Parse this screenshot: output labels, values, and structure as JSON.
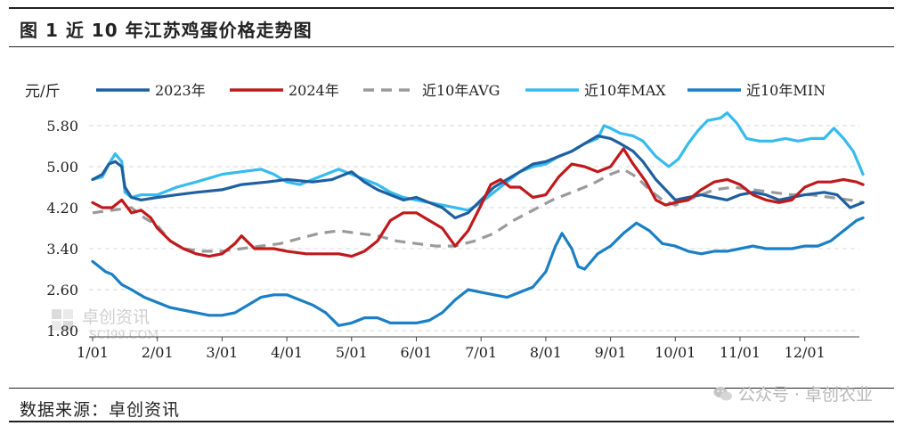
{
  "header": {
    "figure_title": "图 1  近 10 年江苏鸡蛋价格走势图"
  },
  "footer": {
    "source": "数据来源：卓创资讯",
    "wechat_label": "公众号 · 卓创农业"
  },
  "watermark": {
    "text": "卓创资讯",
    "sub": "SCI99.COM"
  },
  "colors": {
    "2023": "#1f5fa0",
    "2024": "#c0191c",
    "avg": "#9a9a9a",
    "max": "#36bbee",
    "min": "#1a7fc4"
  },
  "chart_data": {
    "type": "line",
    "ylabel": "元/斤",
    "ylim": [
      1.8,
      6.1
    ],
    "yticks": [
      "1.80",
      "2.60",
      "3.40",
      "4.20",
      "5.00",
      "5.80"
    ],
    "categories": [
      "1/01",
      "2/01",
      "3/01",
      "4/01",
      "5/01",
      "6/01",
      "7/01",
      "8/01",
      "9/01",
      "10/01",
      "11/01",
      "12/01"
    ],
    "x_unit": "month (1.0 = 1/01)",
    "grid": true,
    "legend": "top",
    "series": [
      {
        "name": "2023年",
        "key": "2023",
        "style": "solid",
        "points": [
          [
            1.0,
            4.75
          ],
          [
            1.15,
            4.85
          ],
          [
            1.25,
            5.05
          ],
          [
            1.35,
            5.1
          ],
          [
            1.45,
            5.0
          ],
          [
            1.5,
            4.6
          ],
          [
            1.6,
            4.4
          ],
          [
            1.75,
            4.35
          ],
          [
            2.0,
            4.4
          ],
          [
            2.3,
            4.45
          ],
          [
            2.6,
            4.5
          ],
          [
            3.0,
            4.55
          ],
          [
            3.3,
            4.65
          ],
          [
            3.7,
            4.7
          ],
          [
            4.0,
            4.75
          ],
          [
            4.4,
            4.7
          ],
          [
            4.7,
            4.75
          ],
          [
            5.0,
            4.9
          ],
          [
            5.2,
            4.7
          ],
          [
            5.4,
            4.55
          ],
          [
            5.6,
            4.45
          ],
          [
            5.8,
            4.35
          ],
          [
            6.0,
            4.4
          ],
          [
            6.2,
            4.3
          ],
          [
            6.4,
            4.2
          ],
          [
            6.6,
            4.0
          ],
          [
            6.8,
            4.1
          ],
          [
            7.0,
            4.35
          ],
          [
            7.2,
            4.6
          ],
          [
            7.4,
            4.75
          ],
          [
            7.6,
            4.9
          ],
          [
            7.8,
            5.05
          ],
          [
            8.0,
            5.1
          ],
          [
            8.2,
            5.2
          ],
          [
            8.4,
            5.3
          ],
          [
            8.6,
            5.45
          ],
          [
            8.8,
            5.6
          ],
          [
            9.0,
            5.55
          ],
          [
            9.15,
            5.45
          ],
          [
            9.35,
            5.3
          ],
          [
            9.5,
            5.1
          ],
          [
            9.7,
            4.75
          ],
          [
            9.85,
            4.55
          ],
          [
            10.0,
            4.35
          ],
          [
            10.2,
            4.4
          ],
          [
            10.4,
            4.45
          ],
          [
            10.6,
            4.4
          ],
          [
            10.8,
            4.35
          ],
          [
            11.0,
            4.45
          ],
          [
            11.2,
            4.5
          ],
          [
            11.4,
            4.45
          ],
          [
            11.6,
            4.35
          ],
          [
            11.8,
            4.4
          ],
          [
            12.0,
            4.45
          ],
          [
            12.3,
            4.5
          ],
          [
            12.5,
            4.45
          ],
          [
            12.7,
            4.2
          ],
          [
            12.9,
            4.3
          ]
        ]
      },
      {
        "name": "2024年",
        "key": "2024",
        "style": "solid",
        "points": [
          [
            1.0,
            4.3
          ],
          [
            1.15,
            4.2
          ],
          [
            1.3,
            4.2
          ],
          [
            1.45,
            4.35
          ],
          [
            1.6,
            4.1
          ],
          [
            1.75,
            4.15
          ],
          [
            1.9,
            4.0
          ],
          [
            2.0,
            3.8
          ],
          [
            2.2,
            3.55
          ],
          [
            2.4,
            3.4
          ],
          [
            2.6,
            3.3
          ],
          [
            2.8,
            3.25
          ],
          [
            3.0,
            3.3
          ],
          [
            3.2,
            3.5
          ],
          [
            3.3,
            3.65
          ],
          [
            3.5,
            3.4
          ],
          [
            3.8,
            3.4
          ],
          [
            4.0,
            3.35
          ],
          [
            4.3,
            3.3
          ],
          [
            4.6,
            3.3
          ],
          [
            4.8,
            3.3
          ],
          [
            5.0,
            3.25
          ],
          [
            5.2,
            3.35
          ],
          [
            5.4,
            3.55
          ],
          [
            5.6,
            3.95
          ],
          [
            5.8,
            4.1
          ],
          [
            6.0,
            4.1
          ],
          [
            6.2,
            3.95
          ],
          [
            6.4,
            3.8
          ],
          [
            6.6,
            3.45
          ],
          [
            6.8,
            3.75
          ],
          [
            7.0,
            4.25
          ],
          [
            7.15,
            4.65
          ],
          [
            7.3,
            4.75
          ],
          [
            7.45,
            4.6
          ],
          [
            7.6,
            4.6
          ],
          [
            7.8,
            4.4
          ],
          [
            8.0,
            4.45
          ],
          [
            8.2,
            4.8
          ],
          [
            8.4,
            5.05
          ],
          [
            8.6,
            5.0
          ],
          [
            8.8,
            4.9
          ],
          [
            9.0,
            5.0
          ],
          [
            9.2,
            5.35
          ],
          [
            9.35,
            5.05
          ],
          [
            9.55,
            4.7
          ],
          [
            9.7,
            4.35
          ],
          [
            9.85,
            4.25
          ],
          [
            10.0,
            4.3
          ],
          [
            10.2,
            4.35
          ],
          [
            10.4,
            4.55
          ],
          [
            10.6,
            4.7
          ],
          [
            10.8,
            4.75
          ],
          [
            11.0,
            4.65
          ],
          [
            11.2,
            4.45
          ],
          [
            11.4,
            4.35
          ],
          [
            11.6,
            4.3
          ],
          [
            11.8,
            4.35
          ],
          [
            12.0,
            4.6
          ],
          [
            12.2,
            4.7
          ],
          [
            12.4,
            4.7
          ],
          [
            12.6,
            4.75
          ],
          [
            12.8,
            4.7
          ],
          [
            12.9,
            4.65
          ]
        ]
      },
      {
        "name": "近10年AVG",
        "key": "avg",
        "style": "dashed",
        "points": [
          [
            1.0,
            4.1
          ],
          [
            1.3,
            4.15
          ],
          [
            1.6,
            4.2
          ],
          [
            1.8,
            4.0
          ],
          [
            2.0,
            3.85
          ],
          [
            2.2,
            3.55
          ],
          [
            2.4,
            3.4
          ],
          [
            2.7,
            3.35
          ],
          [
            3.0,
            3.35
          ],
          [
            3.3,
            3.4
          ],
          [
            3.6,
            3.45
          ],
          [
            3.9,
            3.5
          ],
          [
            4.2,
            3.6
          ],
          [
            4.5,
            3.7
          ],
          [
            4.8,
            3.75
          ],
          [
            5.1,
            3.7
          ],
          [
            5.4,
            3.65
          ],
          [
            5.7,
            3.55
          ],
          [
            6.0,
            3.5
          ],
          [
            6.3,
            3.45
          ],
          [
            6.6,
            3.45
          ],
          [
            6.9,
            3.55
          ],
          [
            7.2,
            3.7
          ],
          [
            7.5,
            3.95
          ],
          [
            7.8,
            4.15
          ],
          [
            8.1,
            4.35
          ],
          [
            8.4,
            4.5
          ],
          [
            8.7,
            4.65
          ],
          [
            9.0,
            4.85
          ],
          [
            9.2,
            4.95
          ],
          [
            9.4,
            4.8
          ],
          [
            9.6,
            4.55
          ],
          [
            9.8,
            4.35
          ],
          [
            10.0,
            4.25
          ],
          [
            10.3,
            4.4
          ],
          [
            10.6,
            4.55
          ],
          [
            10.9,
            4.6
          ],
          [
            11.2,
            4.55
          ],
          [
            11.5,
            4.5
          ],
          [
            11.8,
            4.45
          ],
          [
            12.1,
            4.45
          ],
          [
            12.4,
            4.4
          ],
          [
            12.7,
            4.35
          ],
          [
            12.9,
            4.3
          ]
        ]
      },
      {
        "name": "近10年MAX",
        "key": "max",
        "style": "solid",
        "points": [
          [
            1.0,
            4.75
          ],
          [
            1.15,
            4.8
          ],
          [
            1.25,
            5.05
          ],
          [
            1.35,
            5.25
          ],
          [
            1.45,
            5.1
          ],
          [
            1.5,
            4.5
          ],
          [
            1.6,
            4.4
          ],
          [
            1.75,
            4.45
          ],
          [
            2.0,
            4.45
          ],
          [
            2.3,
            4.6
          ],
          [
            2.6,
            4.7
          ],
          [
            3.0,
            4.85
          ],
          [
            3.3,
            4.9
          ],
          [
            3.6,
            4.95
          ],
          [
            3.8,
            4.85
          ],
          [
            4.0,
            4.7
          ],
          [
            4.2,
            4.65
          ],
          [
            4.4,
            4.75
          ],
          [
            4.6,
            4.85
          ],
          [
            4.8,
            4.95
          ],
          [
            5.0,
            4.85
          ],
          [
            5.2,
            4.75
          ],
          [
            5.4,
            4.65
          ],
          [
            5.6,
            4.5
          ],
          [
            5.8,
            4.4
          ],
          [
            6.0,
            4.35
          ],
          [
            6.2,
            4.3
          ],
          [
            6.4,
            4.25
          ],
          [
            6.6,
            4.2
          ],
          [
            6.8,
            4.15
          ],
          [
            7.0,
            4.3
          ],
          [
            7.2,
            4.5
          ],
          [
            7.4,
            4.7
          ],
          [
            7.6,
            4.9
          ],
          [
            7.8,
            5.0
          ],
          [
            8.0,
            5.05
          ],
          [
            8.2,
            5.2
          ],
          [
            8.4,
            5.3
          ],
          [
            8.6,
            5.45
          ],
          [
            8.8,
            5.55
          ],
          [
            8.9,
            5.8
          ],
          [
            9.0,
            5.75
          ],
          [
            9.15,
            5.65
          ],
          [
            9.35,
            5.6
          ],
          [
            9.5,
            5.5
          ],
          [
            9.7,
            5.2
          ],
          [
            9.9,
            5.0
          ],
          [
            10.05,
            5.15
          ],
          [
            10.2,
            5.45
          ],
          [
            10.35,
            5.7
          ],
          [
            10.5,
            5.9
          ],
          [
            10.7,
            5.95
          ],
          [
            10.8,
            6.05
          ],
          [
            10.95,
            5.85
          ],
          [
            11.1,
            5.55
          ],
          [
            11.3,
            5.5
          ],
          [
            11.5,
            5.5
          ],
          [
            11.7,
            5.55
          ],
          [
            11.9,
            5.5
          ],
          [
            12.1,
            5.55
          ],
          [
            12.3,
            5.55
          ],
          [
            12.45,
            5.75
          ],
          [
            12.6,
            5.55
          ],
          [
            12.75,
            5.3
          ],
          [
            12.9,
            4.85
          ]
        ]
      },
      {
        "name": "近10年MIN",
        "key": "min",
        "style": "solid",
        "points": [
          [
            1.0,
            3.15
          ],
          [
            1.1,
            3.05
          ],
          [
            1.2,
            2.95
          ],
          [
            1.3,
            2.9
          ],
          [
            1.45,
            2.7
          ],
          [
            1.6,
            2.6
          ],
          [
            1.8,
            2.45
          ],
          [
            2.0,
            2.35
          ],
          [
            2.2,
            2.25
          ],
          [
            2.4,
            2.2
          ],
          [
            2.6,
            2.15
          ],
          [
            2.8,
            2.1
          ],
          [
            3.0,
            2.1
          ],
          [
            3.2,
            2.15
          ],
          [
            3.4,
            2.3
          ],
          [
            3.6,
            2.45
          ],
          [
            3.8,
            2.5
          ],
          [
            4.0,
            2.5
          ],
          [
            4.2,
            2.4
          ],
          [
            4.4,
            2.3
          ],
          [
            4.6,
            2.15
          ],
          [
            4.8,
            1.9
          ],
          [
            5.0,
            1.95
          ],
          [
            5.2,
            2.05
          ],
          [
            5.4,
            2.05
          ],
          [
            5.6,
            1.95
          ],
          [
            5.8,
            1.95
          ],
          [
            6.0,
            1.95
          ],
          [
            6.2,
            2.0
          ],
          [
            6.4,
            2.15
          ],
          [
            6.6,
            2.4
          ],
          [
            6.8,
            2.6
          ],
          [
            7.0,
            2.55
          ],
          [
            7.2,
            2.5
          ],
          [
            7.4,
            2.45
          ],
          [
            7.6,
            2.55
          ],
          [
            7.8,
            2.65
          ],
          [
            8.0,
            2.95
          ],
          [
            8.15,
            3.45
          ],
          [
            8.25,
            3.7
          ],
          [
            8.4,
            3.4
          ],
          [
            8.5,
            3.05
          ],
          [
            8.6,
            3.0
          ],
          [
            8.8,
            3.3
          ],
          [
            9.0,
            3.45
          ],
          [
            9.2,
            3.7
          ],
          [
            9.4,
            3.9
          ],
          [
            9.6,
            3.75
          ],
          [
            9.8,
            3.5
          ],
          [
            10.0,
            3.45
          ],
          [
            10.2,
            3.35
          ],
          [
            10.4,
            3.3
          ],
          [
            10.6,
            3.35
          ],
          [
            10.8,
            3.35
          ],
          [
            11.0,
            3.4
          ],
          [
            11.2,
            3.45
          ],
          [
            11.4,
            3.4
          ],
          [
            11.6,
            3.4
          ],
          [
            11.8,
            3.4
          ],
          [
            12.0,
            3.45
          ],
          [
            12.2,
            3.45
          ],
          [
            12.4,
            3.55
          ],
          [
            12.6,
            3.75
          ],
          [
            12.8,
            3.95
          ],
          [
            12.9,
            4.0
          ]
        ]
      }
    ]
  }
}
